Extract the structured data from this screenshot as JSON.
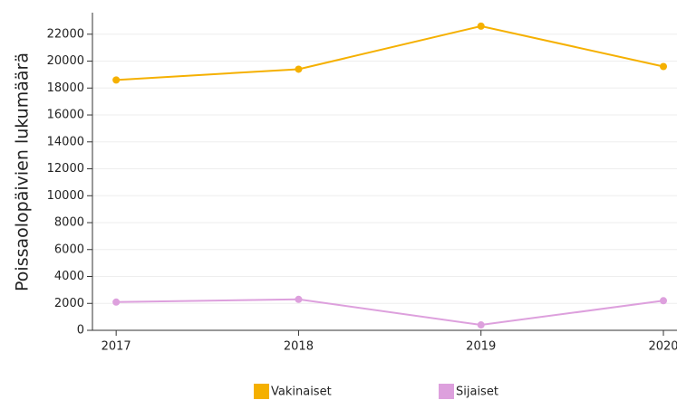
{
  "chart_data": {
    "type": "line",
    "y_label": "Poissaolopäivien lukumäärä",
    "x": [
      2017,
      2018,
      2019,
      2020
    ],
    "xlim": [
      2016.87,
      2020
    ],
    "xticks": [
      2017,
      2018,
      2019,
      2020
    ],
    "ylim": [
      0,
      23600
    ],
    "yticks": [
      0,
      2000,
      4000,
      6000,
      8000,
      10000,
      12000,
      14000,
      16000,
      18000,
      20000,
      22000
    ],
    "grid": true,
    "legend": "bottom",
    "series": [
      {
        "name": "Vakinaiset",
        "color": "#f5b000",
        "values": [
          18600,
          19400,
          22600,
          19600
        ]
      },
      {
        "name": "Sijaiset",
        "color": "#dda0dd",
        "values": [
          2100,
          2300,
          400,
          2200
        ]
      }
    ]
  }
}
